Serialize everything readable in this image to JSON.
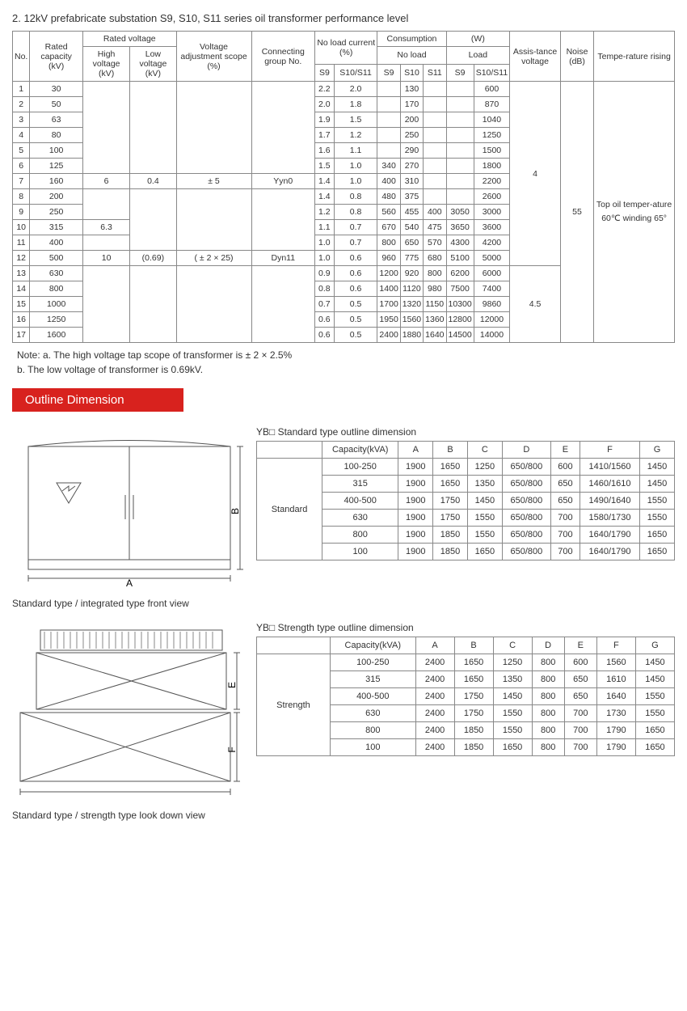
{
  "page_title": "2. 12kV prefabricate substation S9, S10, S11 series oil transformer performance level",
  "main_headers": {
    "no": "No.",
    "rated_capacity": "Rated capacity (kV)",
    "rated_voltage": "Rated voltage",
    "high_voltage": "High voltage (kV)",
    "low_voltage": "Low voltage (kV)",
    "voltage_adj": "Voltage adjustment scope (%)",
    "connecting": "Connecting group No.",
    "no_load_current": "No load current (%)",
    "consumption": "Consumption",
    "w": "(W)",
    "no_load": "No load",
    "load": "Load",
    "s9": "S9",
    "s10s11": "S10/S11",
    "s10": "S10",
    "s11": "S11",
    "assistance": "Assis-tance voltage",
    "noise": "Noise (dB)",
    "temp": "Tempe-rature rising"
  },
  "main_rows": [
    {
      "no": "1",
      "cap": "30",
      "nl_s9": "2.2",
      "nl_s10": "2.0",
      "c_s9": "",
      "c_s10": "130",
      "c_s11": "",
      "l_s9": "",
      "l_s10": "600"
    },
    {
      "no": "2",
      "cap": "50",
      "nl_s9": "2.0",
      "nl_s10": "1.8",
      "c_s9": "",
      "c_s10": "170",
      "c_s11": "",
      "l_s9": "",
      "l_s10": "870"
    },
    {
      "no": "3",
      "cap": "63",
      "nl_s9": "1.9",
      "nl_s10": "1.5",
      "c_s9": "",
      "c_s10": "200",
      "c_s11": "",
      "l_s9": "",
      "l_s10": "1040"
    },
    {
      "no": "4",
      "cap": "80",
      "nl_s9": "1.7",
      "nl_s10": "1.2",
      "c_s9": "",
      "c_s10": "250",
      "c_s11": "",
      "l_s9": "",
      "l_s10": "1250"
    },
    {
      "no": "5",
      "cap": "100",
      "nl_s9": "1.6",
      "nl_s10": "1.1",
      "c_s9": "",
      "c_s10": "290",
      "c_s11": "",
      "l_s9": "",
      "l_s10": "1500"
    },
    {
      "no": "6",
      "cap": "125",
      "nl_s9": "1.5",
      "nl_s10": "1.0",
      "c_s9": "340",
      "c_s10": "270",
      "c_s11": "",
      "l_s9": "",
      "l_s10": "1800"
    },
    {
      "no": "7",
      "cap": "160",
      "nl_s9": "1.4",
      "nl_s10": "1.0",
      "c_s9": "400",
      "c_s10": "310",
      "c_s11": "",
      "l_s9": "",
      "l_s10": "2200"
    },
    {
      "no": "8",
      "cap": "200",
      "nl_s9": "1.4",
      "nl_s10": "0.8",
      "c_s9": "480",
      "c_s10": "375",
      "c_s11": "",
      "l_s9": "",
      "l_s10": "2600"
    },
    {
      "no": "9",
      "cap": "250",
      "nl_s9": "1.2",
      "nl_s10": "0.8",
      "c_s9": "560",
      "c_s10": "455",
      "c_s11": "400",
      "l_s9": "3050",
      "l_s10": "3000"
    },
    {
      "no": "10",
      "cap": "315",
      "nl_s9": "1.1",
      "nl_s10": "0.7",
      "c_s9": "670",
      "c_s10": "540",
      "c_s11": "475",
      "l_s9": "3650",
      "l_s10": "3600"
    },
    {
      "no": "11",
      "cap": "400",
      "nl_s9": "1.0",
      "nl_s10": "0.7",
      "c_s9": "800",
      "c_s10": "650",
      "c_s11": "570",
      "l_s9": "4300",
      "l_s10": "4200"
    },
    {
      "no": "12",
      "cap": "500",
      "nl_s9": "1.0",
      "nl_s10": "0.6",
      "c_s9": "960",
      "c_s10": "775",
      "c_s11": "680",
      "l_s9": "5100",
      "l_s10": "5000"
    },
    {
      "no": "13",
      "cap": "630",
      "nl_s9": "0.9",
      "nl_s10": "0.6",
      "c_s9": "1200",
      "c_s10": "920",
      "c_s11": "800",
      "l_s9": "6200",
      "l_s10": "6000"
    },
    {
      "no": "14",
      "cap": "800",
      "nl_s9": "0.8",
      "nl_s10": "0.6",
      "c_s9": "1400",
      "c_s10": "1120",
      "c_s11": "980",
      "l_s9": "7500",
      "l_s10": "7400"
    },
    {
      "no": "15",
      "cap": "1000",
      "nl_s9": "0.7",
      "nl_s10": "0.5",
      "c_s9": "1700",
      "c_s10": "1320",
      "c_s11": "1150",
      "l_s9": "10300",
      "l_s10": "9860"
    },
    {
      "no": "16",
      "cap": "1250",
      "nl_s9": "0.6",
      "nl_s10": "0.5",
      "c_s9": "1950",
      "c_s10": "1560",
      "c_s11": "1360",
      "l_s9": "12800",
      "l_s10": "12000"
    },
    {
      "no": "17",
      "cap": "1600",
      "nl_s9": "0.6",
      "nl_s10": "0.5",
      "c_s9": "2400",
      "c_s10": "1880",
      "c_s11": "1640",
      "l_s9": "14500",
      "l_s10": "14000"
    }
  ],
  "hv_cells": [
    "6",
    "6.3",
    "10"
  ],
  "lv_cells": [
    "0.4",
    "(0.69)"
  ],
  "vadj_cells": [
    "± 5",
    "( ± 2 × 25)"
  ],
  "conn_cells": [
    "Yyn0",
    "Dyn11"
  ],
  "assist_cells": [
    "4",
    "4.5"
  ],
  "noise_val": "55",
  "temp_val": "Top oil temper-ature 60℃ winding 65°",
  "notes": "Note: a. The high voltage tap scope of transformer is  ± 2 × 2.5%\n            b. The low voltage of transformer is 0.69kV.",
  "banner": "Outline Dimension",
  "standard": {
    "title": "YB□ Standard type outline dimension",
    "type_label": "Standard",
    "columns": [
      "Capacity(kVA)",
      "A",
      "B",
      "C",
      "D",
      "E",
      "F",
      "G"
    ],
    "rows": [
      [
        "100-250",
        "1900",
        "1650",
        "1250",
        "650/800",
        "600",
        "1410/1560",
        "1450"
      ],
      [
        "315",
        "1900",
        "1650",
        "1350",
        "650/800",
        "650",
        "1460/1610",
        "1450"
      ],
      [
        "400-500",
        "1900",
        "1750",
        "1450",
        "650/800",
        "650",
        "1490/1640",
        "1550"
      ],
      [
        "630",
        "1900",
        "1750",
        "1550",
        "650/800",
        "700",
        "1580/1730",
        "1550"
      ],
      [
        "800",
        "1900",
        "1850",
        "1550",
        "650/800",
        "700",
        "1640/1790",
        "1650"
      ],
      [
        "100",
        "1900",
        "1850",
        "1650",
        "650/800",
        "700",
        "1640/1790",
        "1650"
      ]
    ],
    "caption": "Standard type / integrated type front view"
  },
  "strength": {
    "title": "YB□ Strength type outline dimension",
    "type_label": "Strength",
    "columns": [
      "Capacity(kVA)",
      "A",
      "B",
      "C",
      "D",
      "E",
      "F",
      "G"
    ],
    "rows": [
      [
        "100-250",
        "2400",
        "1650",
        "1250",
        "800",
        "600",
        "1560",
        "1450"
      ],
      [
        "315",
        "2400",
        "1650",
        "1350",
        "800",
        "650",
        "1610",
        "1450"
      ],
      [
        "400-500",
        "2400",
        "1750",
        "1450",
        "800",
        "650",
        "1640",
        "1550"
      ],
      [
        "630",
        "2400",
        "1750",
        "1550",
        "800",
        "700",
        "1730",
        "1550"
      ],
      [
        "800",
        "2400",
        "1850",
        "1550",
        "800",
        "700",
        "1790",
        "1650"
      ],
      [
        "100",
        "2400",
        "1850",
        "1650",
        "800",
        "700",
        "1790",
        "1650"
      ]
    ],
    "caption": "Standard type / strength type look down view"
  },
  "diagram_labels": {
    "A": "A",
    "B": "B",
    "E": "E",
    "F": "F"
  },
  "colors": {
    "banner": "#d8221e",
    "border": "#888888",
    "text": "#333333"
  }
}
